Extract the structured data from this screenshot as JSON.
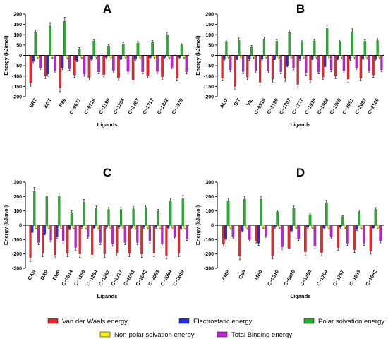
{
  "series_names": [
    "Van der Waals energy",
    "Electrostatic energy",
    "Polar solvation energy",
    "Non-polar solvation energy",
    "Total Binding energy"
  ],
  "series_colors": [
    "#e8262b",
    "#1b2ee6",
    "#23b12b",
    "#f2f20d",
    "#c21fdb"
  ],
  "chart_data": [
    {
      "type": "bar",
      "panel_label": "A",
      "xlabel": "Ligands",
      "ylabel": "Energy (kJ/mol)",
      "ylim": [
        -200,
        200
      ],
      "yticks": [
        -200,
        -150,
        -100,
        -50,
        0,
        50,
        100,
        150,
        200
      ],
      "categories": [
        "ERT",
        "KGT",
        "R86",
        "C−0671",
        "C−0716",
        "C−1190",
        "C−1254",
        "C−1287",
        "C−1717",
        "C−1822",
        "C−1939"
      ],
      "series": [
        {
          "name": "Van der Waals energy",
          "values": [
            -133,
            -100,
            -157,
            -95,
            -107,
            -93,
            -108,
            -120,
            -98,
            -103,
            -110
          ]
        },
        {
          "name": "Electrostatic energy",
          "values": [
            -30,
            -90,
            -62,
            -25,
            -20,
            -10,
            -15,
            -20,
            -12,
            -10,
            -12
          ]
        },
        {
          "name": "Polar solvation energy",
          "values": [
            110,
            142,
            165,
            32,
            70,
            46,
            55,
            60,
            65,
            100,
            50
          ]
        },
        {
          "name": "Non-polar solvation energy",
          "values": [
            -10,
            -9,
            -12,
            -9,
            -10,
            -10,
            -10,
            -10,
            -10,
            -11,
            -9
          ]
        },
        {
          "name": "Total Binding energy",
          "values": [
            -60,
            -72,
            -65,
            -90,
            -80,
            -72,
            -78,
            -80,
            -78,
            -57,
            -80
          ]
        }
      ]
    },
    {
      "type": "bar",
      "panel_label": "B",
      "xlabel": "Ligands",
      "ylabel": "Energy (kJ/mol)",
      "ylim": [
        -200,
        200
      ],
      "yticks": [
        -200,
        -150,
        -100,
        -50,
        0,
        50,
        100,
        150,
        200
      ],
      "categories": [
        "ALO",
        "SIT",
        "VIL",
        "C−0310",
        "C−1190",
        "C−1707",
        "C−1717",
        "C−1939",
        "C−1968",
        "C−1969",
        "C−2051",
        "C−2083",
        "C−2186"
      ],
      "series": [
        {
          "name": "Van der Waals energy",
          "values": [
            -110,
            -150,
            -105,
            -130,
            -115,
            -112,
            -140,
            -118,
            -105,
            -100,
            -115,
            -110,
            -95
          ]
        },
        {
          "name": "Electrostatic energy",
          "values": [
            -20,
            -15,
            -18,
            -20,
            -15,
            -50,
            -20,
            -15,
            -55,
            -15,
            -20,
            -15,
            -20
          ]
        },
        {
          "name": "Polar solvation energy",
          "values": [
            68,
            75,
            42,
            80,
            70,
            110,
            68,
            70,
            130,
            68,
            115,
            70,
            72
          ]
        },
        {
          "name": "Non-polar solvation energy",
          "values": [
            -10,
            -10,
            -9,
            -10,
            -10,
            -11,
            -10,
            -10,
            -11,
            -10,
            -10,
            -10,
            -9
          ]
        },
        {
          "name": "Total Binding energy",
          "values": [
            -70,
            -80,
            -75,
            -75,
            -80,
            -62,
            -85,
            -80,
            -70,
            -75,
            -60,
            -75,
            -70
          ]
        }
      ]
    },
    {
      "type": "bar",
      "panel_label": "C",
      "xlabel": "Ligands",
      "ylabel": "Energy (kJ/mol)",
      "ylim": [
        -300,
        300
      ],
      "yticks": [
        -300,
        -200,
        -100,
        0,
        100,
        200,
        300
      ],
      "categories": [
        "CAN",
        "DAP",
        "EMP",
        "C−0914",
        "C−1186",
        "C−1254",
        "C−1287",
        "C−1717",
        "C−2081",
        "C−2082",
        "C−2083",
        "C−2084",
        "C−2619"
      ],
      "series": [
        {
          "name": "Van der Waals energy",
          "values": [
            -225,
            -195,
            -205,
            -195,
            -200,
            -205,
            -200,
            -190,
            -195,
            -200,
            -195,
            -210,
            -195
          ]
        },
        {
          "name": "Electrostatic energy",
          "values": [
            -45,
            -60,
            -80,
            -25,
            -15,
            -20,
            -15,
            -15,
            -20,
            -15,
            -15,
            -20,
            -25
          ]
        },
        {
          "name": "Polar solvation energy",
          "values": [
            235,
            200,
            200,
            90,
            160,
            120,
            110,
            110,
            115,
            125,
            100,
            170,
            185
          ]
        },
        {
          "name": "Non-polar solvation energy",
          "values": [
            -22,
            -20,
            -22,
            -20,
            -20,
            -20,
            -20,
            -20,
            -20,
            -20,
            -20,
            -20,
            -20
          ]
        },
        {
          "name": "Total Binding energy",
          "values": [
            -120,
            -105,
            -110,
            -155,
            -80,
            -120,
            -130,
            -120,
            -120,
            -110,
            -130,
            -85,
            -95
          ]
        }
      ]
    },
    {
      "type": "bar",
      "panel_label": "D",
      "xlabel": "Ligands",
      "ylabel": "Energy (kJ/mol)",
      "ylim": [
        -300,
        300
      ],
      "yticks": [
        -300,
        -200,
        -100,
        0,
        100,
        200,
        300
      ],
      "categories": [
        "AMP",
        "CS9",
        "MB0",
        "C−0310",
        "C−0829",
        "C−1254",
        "C−1704",
        "C−1757",
        "C−1933",
        "C−2082"
      ],
      "series": [
        {
          "name": "Van der Waals energy",
          "values": [
            -130,
            -215,
            -110,
            -210,
            -160,
            -185,
            -190,
            -155,
            -170,
            -180
          ]
        },
        {
          "name": "Electrostatic energy",
          "values": [
            -100,
            -40,
            -125,
            -15,
            -40,
            -15,
            -20,
            -15,
            -30,
            -20
          ]
        },
        {
          "name": "Polar solvation energy",
          "values": [
            170,
            180,
            180,
            95,
            120,
            75,
            155,
            60,
            95,
            110
          ]
        },
        {
          "name": "Non-polar solvation energy",
          "values": [
            -20,
            -20,
            -18,
            -18,
            -18,
            -18,
            -20,
            -18,
            -20,
            -20
          ]
        },
        {
          "name": "Total Binding energy",
          "values": [
            -80,
            -100,
            -75,
            -150,
            -95,
            -145,
            -80,
            -125,
            -125,
            -110
          ]
        }
      ]
    }
  ]
}
